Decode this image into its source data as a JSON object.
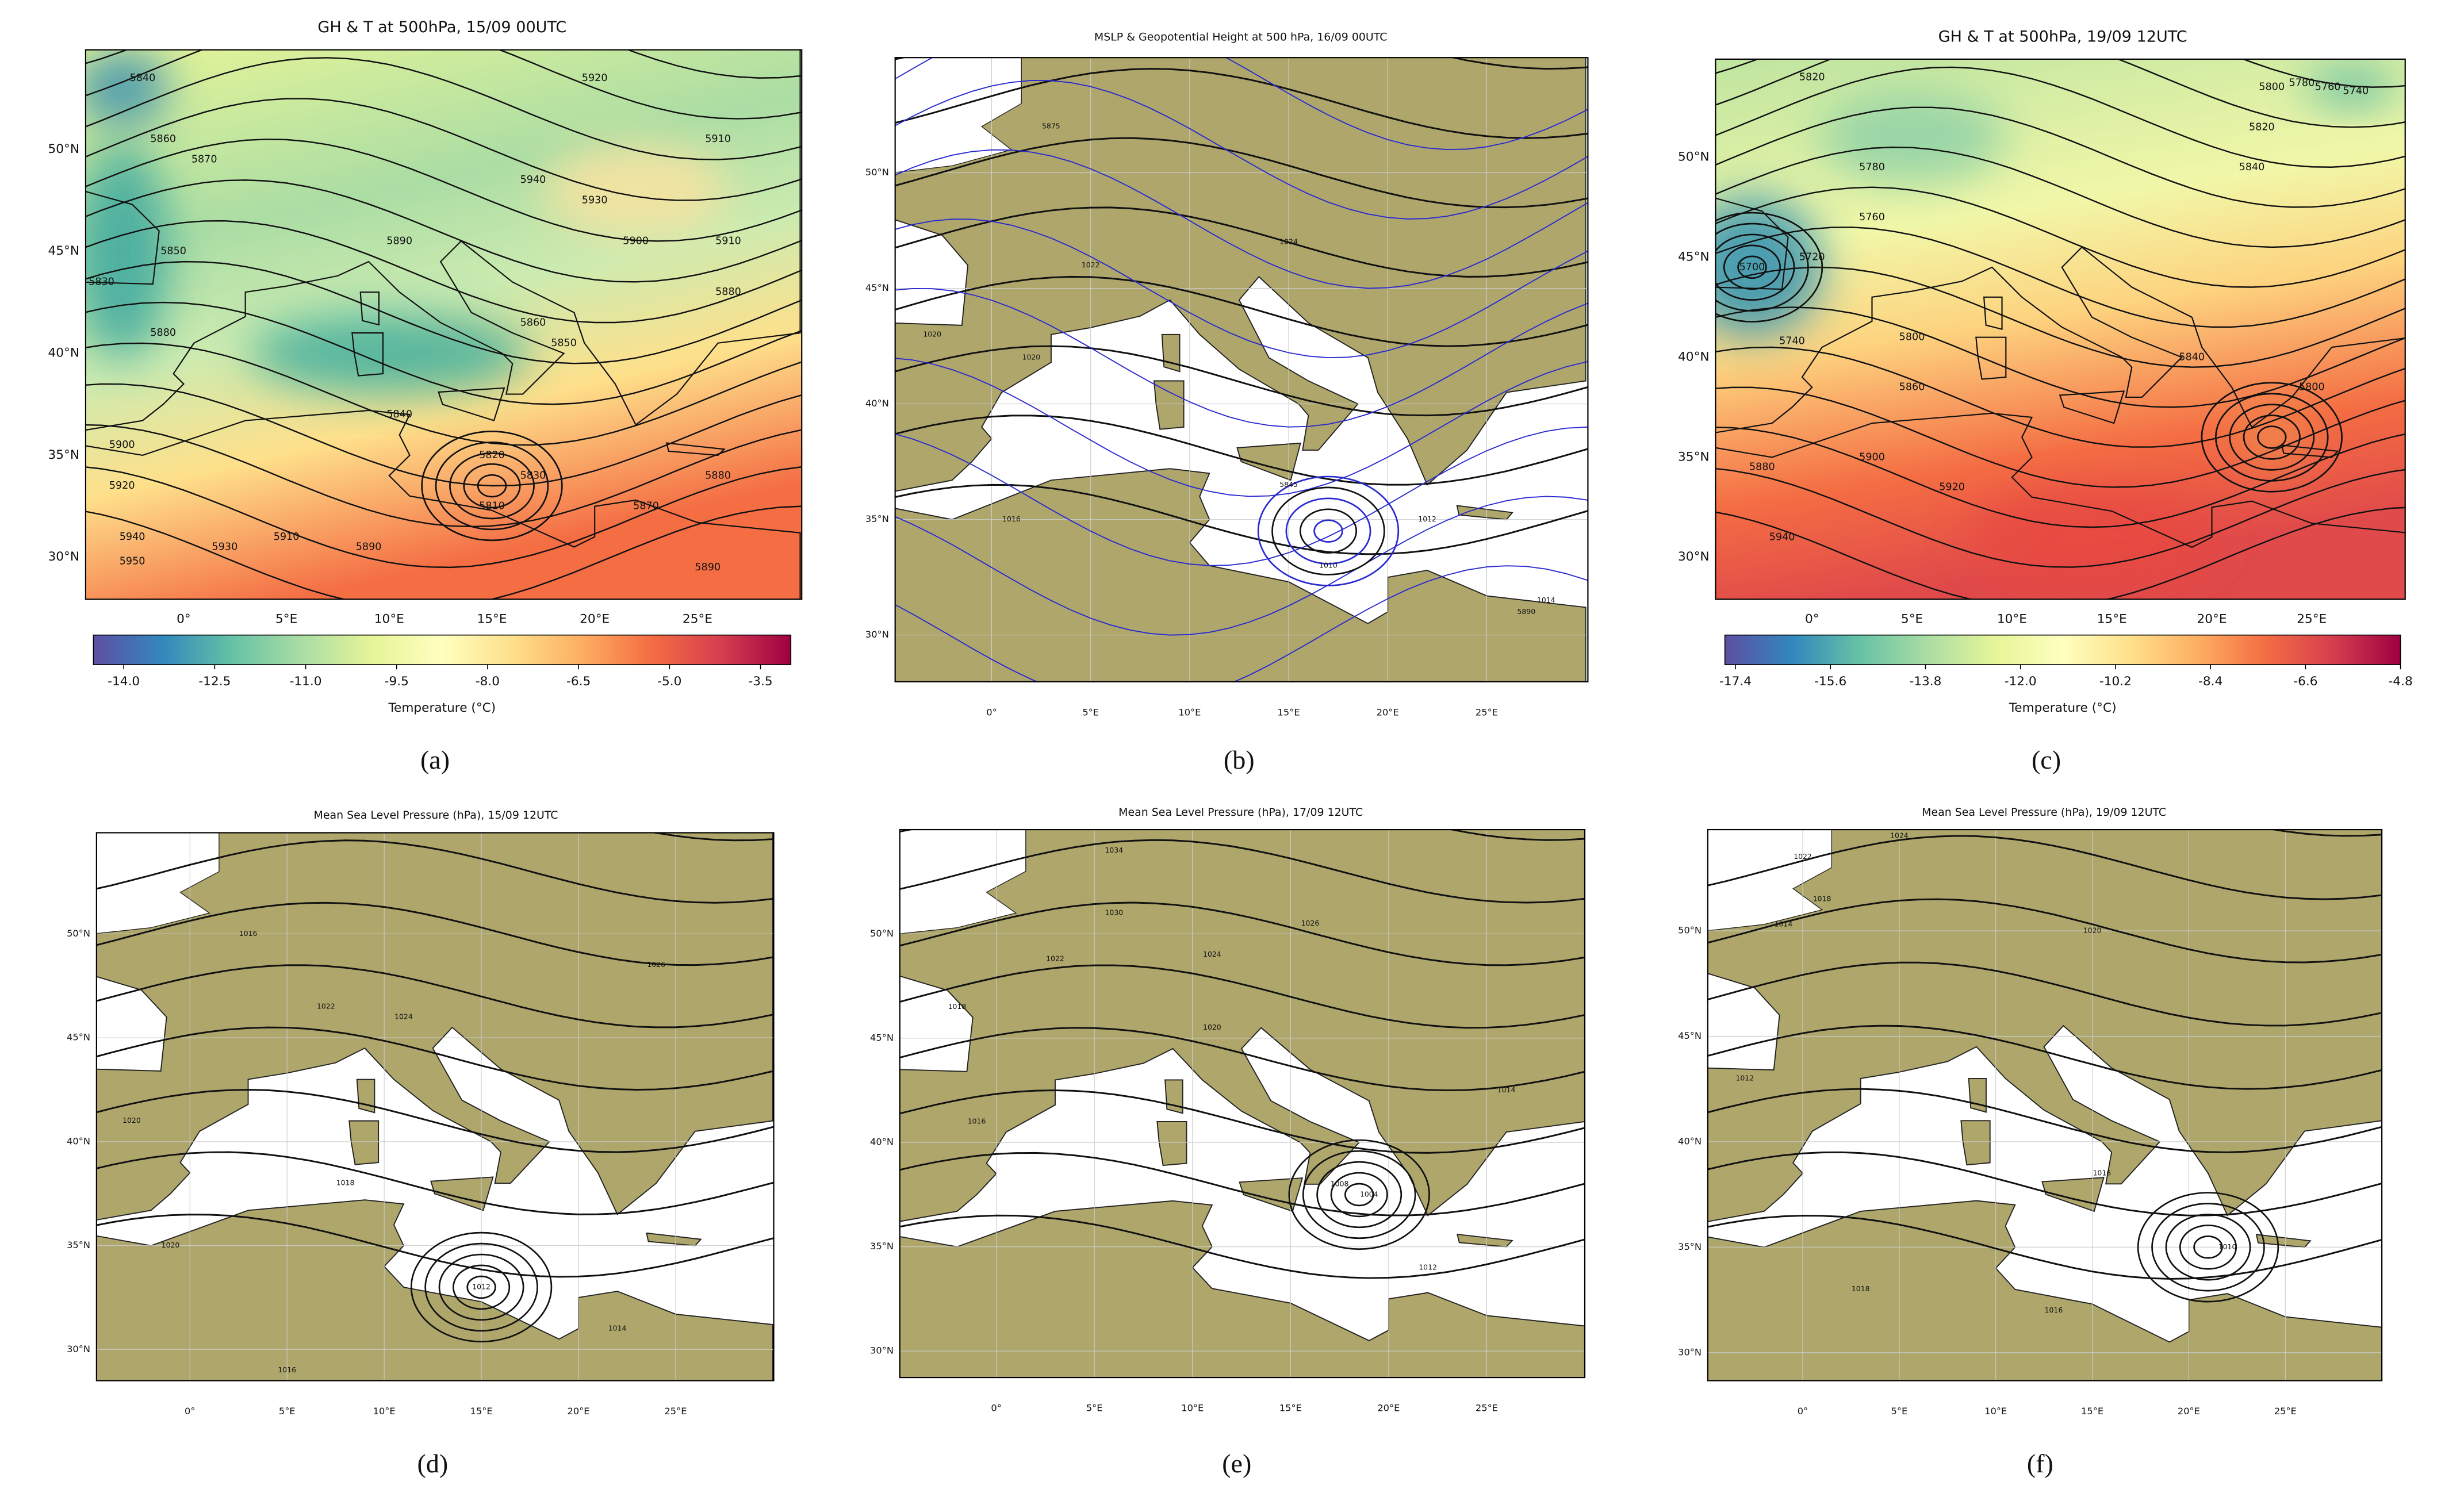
{
  "panels": [
    {
      "title": "GH & T at 500hPa, 15/09 00UTC",
      "label": "(a)",
      "lat_ticks": [
        "50°N",
        "45°N",
        "40°N",
        "35°N",
        "30°N"
      ],
      "lon_ticks": [
        "0°",
        "5°E",
        "10°E",
        "15°E",
        "20°E",
        "25°E"
      ],
      "colorbar": {
        "label": "Temperature (°C)",
        "lim": [
          -14.5,
          -3.0
        ],
        "ticks": [
          {
            "value": -14.0,
            "label": "-14.0"
          },
          {
            "value": -12.5,
            "label": "-12.5"
          },
          {
            "value": -11.0,
            "label": "-11.0"
          },
          {
            "value": -9.5,
            "label": "-9.5"
          },
          {
            "value": -8.0,
            "label": "-8.0"
          },
          {
            "value": -6.5,
            "label": "-6.5"
          },
          {
            "value": -5.0,
            "label": "-5.0"
          },
          {
            "value": -3.5,
            "label": "-3.5"
          }
        ]
      },
      "contour_labels": [
        "5840",
        "5860",
        "5870",
        "5850",
        "5830",
        "5880",
        "5900",
        "5920",
        "5940",
        "5950",
        "5930",
        "5910",
        "5890",
        "5820",
        "5810",
        "5830",
        "5870",
        "5880",
        "5890",
        "5840",
        "5860",
        "5850",
        "5890",
        "5900",
        "5910",
        "5880",
        "5940",
        "5930",
        "5920",
        "5910"
      ]
    },
    {
      "title": "MSLP & Geopotential Height at 500 hPa, 16/09 00UTC",
      "label": "(b)",
      "lat_ticks": [
        "50°N",
        "45°N",
        "40°N",
        "35°N",
        "30°N"
      ],
      "lon_ticks": [
        "0°",
        "5°E",
        "10°E",
        "15°E",
        "20°E",
        "25°E"
      ],
      "contour_labels": [
        "1020",
        "1022",
        "1024",
        "1016",
        "1012",
        "1014",
        "5875",
        "5845",
        "1010",
        "5890",
        "1020"
      ]
    },
    {
      "title": "GH & T at 500hPa, 19/09 12UTC",
      "label": "(c)",
      "lat_ticks": [
        "50°N",
        "45°N",
        "40°N",
        "35°N",
        "30°N"
      ],
      "lon_ticks": [
        "0°",
        "5°E",
        "10°E",
        "15°E",
        "20°E",
        "25°E"
      ],
      "colorbar": {
        "label": "Temperature (°C)",
        "lim": [
          -17.6,
          -4.8
        ],
        "ticks": [
          {
            "value": -17.4,
            "label": "-17.4"
          },
          {
            "value": -15.6,
            "label": "-15.6"
          },
          {
            "value": -13.8,
            "label": "-13.8"
          },
          {
            "value": -12.0,
            "label": "-12.0"
          },
          {
            "value": -10.2,
            "label": "-10.2"
          },
          {
            "value": -8.4,
            "label": "-8.4"
          },
          {
            "value": -6.6,
            "label": "-6.6"
          },
          {
            "value": -4.8,
            "label": "-4.8"
          }
        ]
      },
      "contour_labels": [
        "5820",
        "5800",
        "5780",
        "5760",
        "5740",
        "5820",
        "5840",
        "5780",
        "5760",
        "5720",
        "5700",
        "5740",
        "5800",
        "5860",
        "5840",
        "5880",
        "5900",
        "5920",
        "5940",
        "5800"
      ]
    },
    {
      "title": "Mean Sea Level Pressure (hPa), 15/09 12UTC",
      "label": "(d)",
      "lat_ticks": [
        "50°N",
        "45°N",
        "40°N",
        "35°N",
        "30°N"
      ],
      "lon_ticks": [
        "0°",
        "5°E",
        "10°E",
        "15°E",
        "20°E",
        "25°E"
      ],
      "contour_labels": [
        "1016",
        "1020",
        "1022",
        "1024",
        "1026",
        "1012",
        "1014",
        "1018",
        "1016",
        "1020"
      ]
    },
    {
      "title": "Mean Sea Level Pressure (hPa), 17/09 12UTC",
      "label": "(e)",
      "lat_ticks": [
        "50°N",
        "45°N",
        "40°N",
        "35°N",
        "30°N"
      ],
      "lon_ticks": [
        "0°",
        "5°E",
        "10°E",
        "15°E",
        "20°E",
        "25°E"
      ],
      "contour_labels": [
        "1034",
        "1030",
        "1026",
        "1024",
        "1022",
        "1020",
        "1018",
        "1016",
        "1014",
        "1012",
        "1008",
        "1004"
      ]
    },
    {
      "title": "Mean Sea Level Pressure (hPa), 19/09 12UTC",
      "label": "(f)",
      "lat_ticks": [
        "50°N",
        "45°N",
        "40°N",
        "35°N",
        "30°N"
      ],
      "lon_ticks": [
        "0°",
        "5°E",
        "10°E",
        "15°E",
        "20°E",
        "25°E"
      ],
      "contour_labels": [
        "1022",
        "1018",
        "1014",
        "1020",
        "1024",
        "1012",
        "1016",
        "1010",
        "1018",
        "1016"
      ]
    }
  ]
}
